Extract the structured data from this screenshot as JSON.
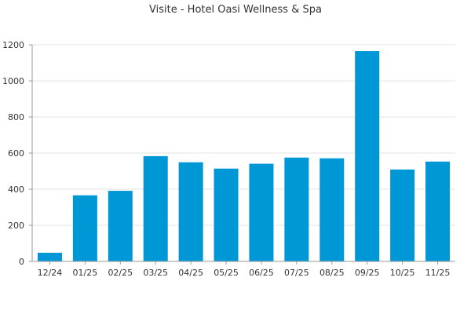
{
  "chart_data": {
    "type": "bar",
    "title": "Visite - Hotel Oasi Wellness & Spa",
    "xlabel": "",
    "ylabel": "",
    "categories": [
      "12/24",
      "01/25",
      "02/25",
      "03/25",
      "04/25",
      "05/25",
      "06/25",
      "07/25",
      "08/25",
      "09/25",
      "10/25",
      "11/25"
    ],
    "values": [
      48,
      366,
      391,
      583,
      549,
      514,
      541,
      575,
      571,
      1165,
      509,
      553
    ],
    "ylim": [
      0,
      1200
    ],
    "yticks": [
      0,
      200,
      400,
      600,
      800,
      1000,
      1200
    ],
    "grid": true,
    "legend": "none",
    "bar_color": "#0097d6",
    "grid_color": "#e3e3e3",
    "axis_color": "#9a9a9a",
    "text_color": "#333333"
  }
}
